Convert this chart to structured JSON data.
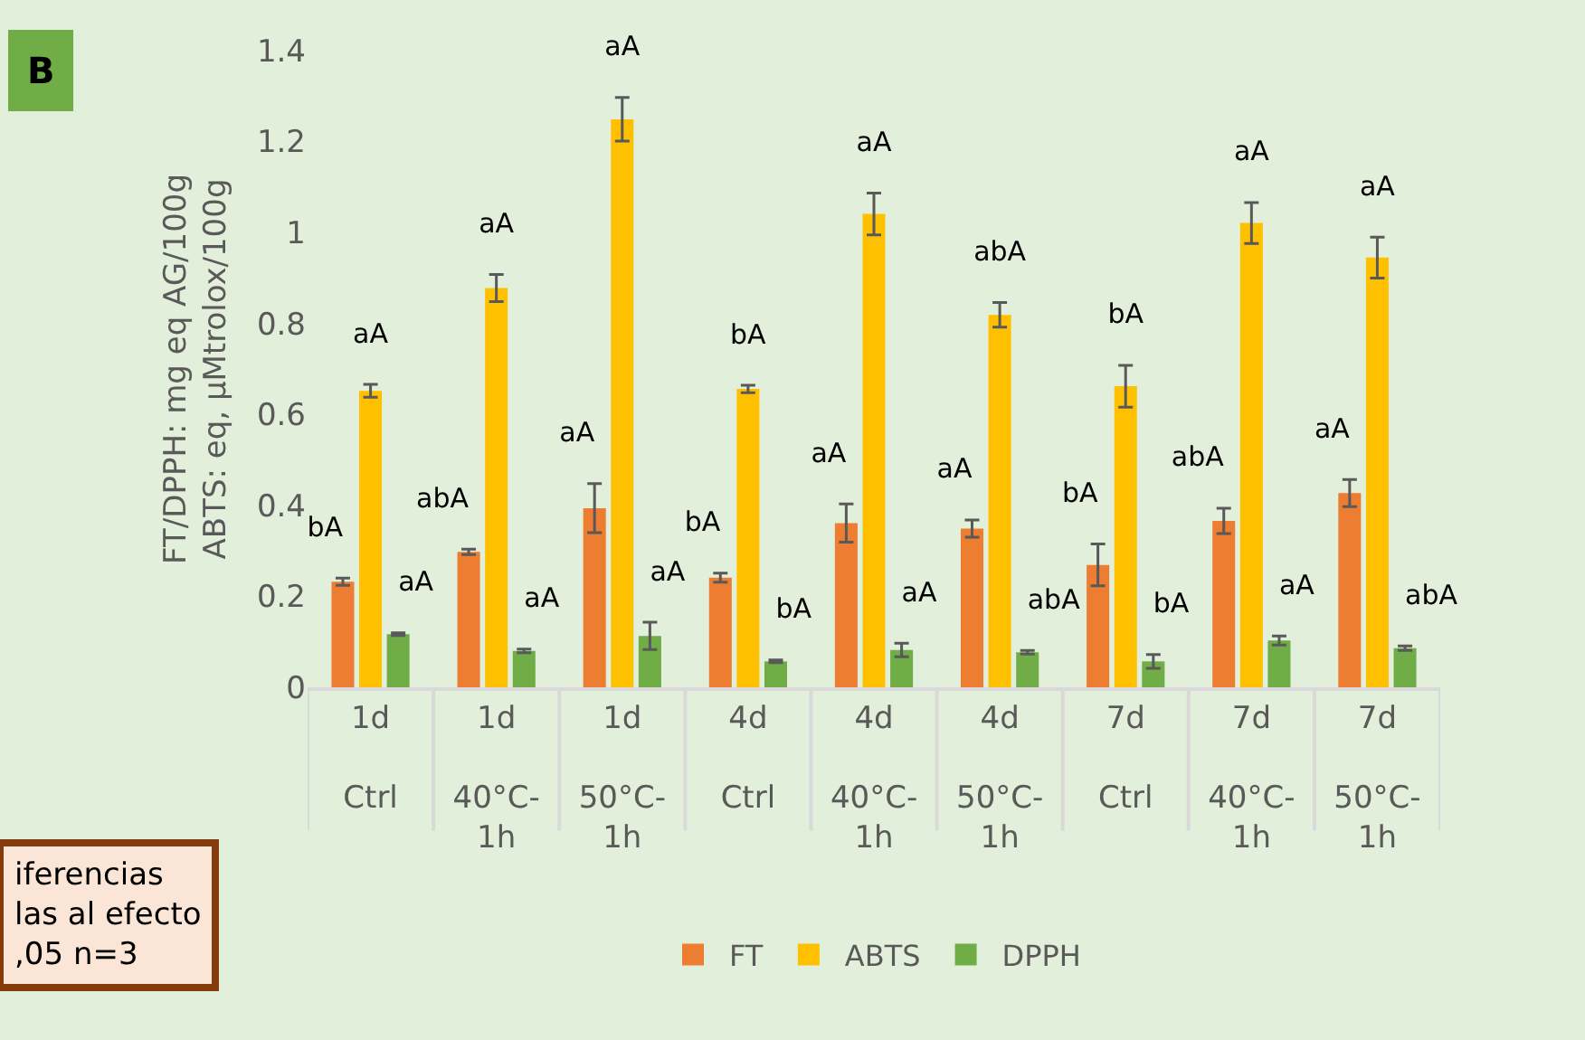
{
  "chart_data": {
    "type": "bar",
    "ylabel": "FT/DPPH: mg eq AG/100g\nABTS: eq, µMtrolox/100g",
    "categories": [
      "1d\nCtrl",
      "1d\n40°C-\n1h",
      "1d\n50°C-\n1h",
      "4d\nCtrl",
      "4d\n40°C-\n1h",
      "4d\n50°C-\n1h",
      "7d\nCtrl",
      "7d\n40°C-\n1h",
      "7d\n50°C-\n1h"
    ],
    "series": [
      {
        "name": "FT",
        "color": "#ed7d31",
        "values": [
          0.232,
          0.298,
          0.394,
          0.241,
          0.361,
          0.349,
          0.269,
          0.366,
          0.427
        ],
        "errors": [
          0.008,
          0.006,
          0.054,
          0.01,
          0.042,
          0.019,
          0.046,
          0.028,
          0.03
        ],
        "value_labels": [
          "bA",
          "abA",
          "aA",
          "bA",
          "aA",
          "aA",
          "bA",
          "abA",
          "aA"
        ]
      },
      {
        "name": "ABTS",
        "color": "#ffc000",
        "values": [
          0.652,
          0.878,
          1.249,
          0.656,
          1.041,
          0.819,
          0.662,
          1.021,
          0.945
        ],
        "errors": [
          0.014,
          0.03,
          0.048,
          0.008,
          0.046,
          0.027,
          0.046,
          0.045,
          0.045
        ],
        "value_labels": [
          "aA",
          "aA",
          "aA",
          "bA",
          "aA",
          "abA",
          "bA",
          "aA",
          "aA"
        ]
      },
      {
        "name": "DPPH",
        "color": "#70ad47",
        "values": [
          0.117,
          0.08,
          0.113,
          0.057,
          0.082,
          0.077,
          0.057,
          0.103,
          0.086
        ],
        "errors": [
          0.003,
          0.004,
          0.03,
          0.003,
          0.015,
          0.004,
          0.015,
          0.01,
          0.005
        ],
        "value_labels": [
          "aA",
          "aA",
          "aA",
          "bA",
          "aA",
          "abA",
          "bA",
          "aA",
          "abA"
        ]
      }
    ],
    "ylim": [
      0,
      1.4
    ],
    "yticks": [
      0,
      0.2,
      0.4,
      0.6,
      0.8,
      1,
      1.2,
      1.4
    ],
    "grid": false,
    "legend": "bottom",
    "annotations": [
      "B",
      "iferencias\nlas al efecto\n,05 n=3"
    ]
  }
}
